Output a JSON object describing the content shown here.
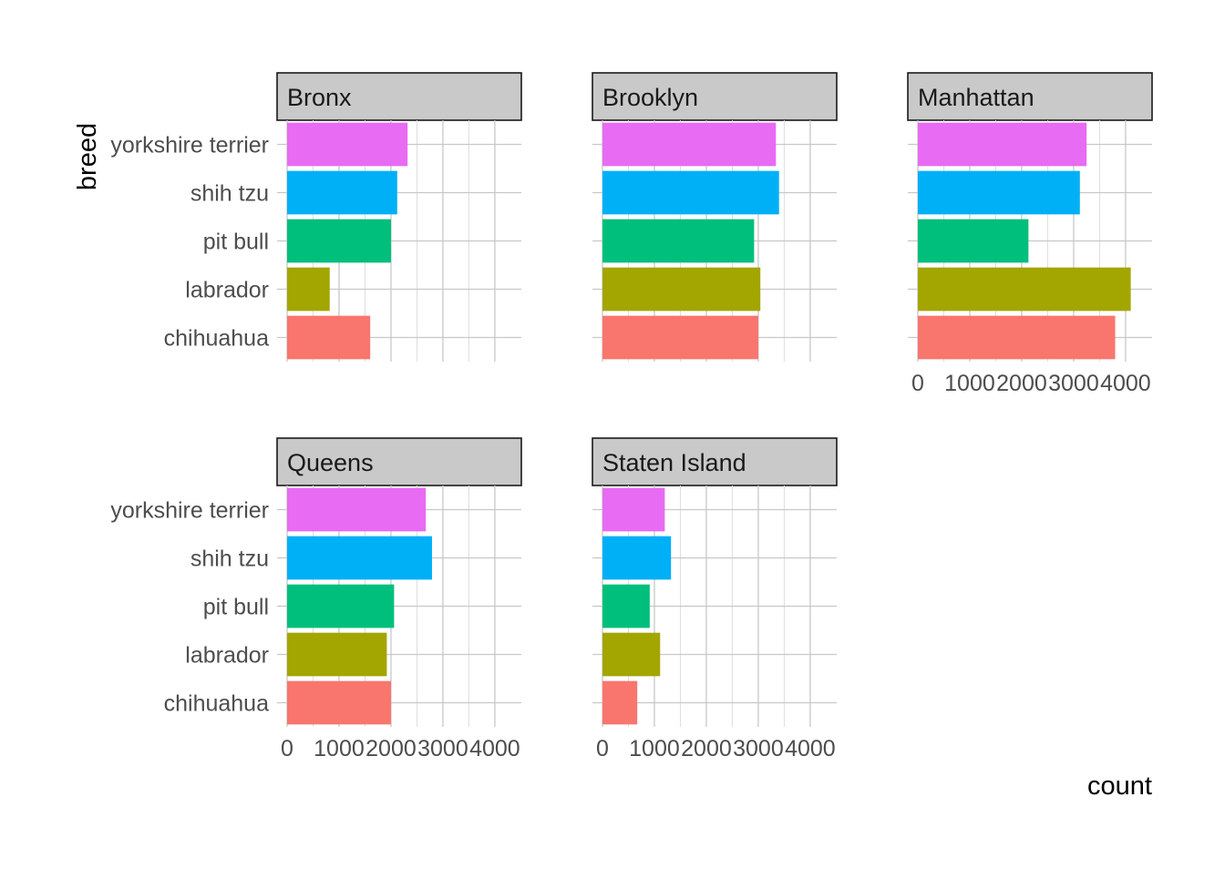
{
  "chart_data": {
    "type": "bar",
    "orientation": "horizontal",
    "facet_by": "borough",
    "categories": [
      "chihuahua",
      "labrador",
      "pit bull",
      "shih tzu",
      "yorkshire terrier"
    ],
    "colors": {
      "chihuahua": "#F8766D",
      "labrador": "#A3A500",
      "pit bull": "#00BF7D",
      "shih tzu": "#00B0F6",
      "yorkshire terrier": "#E76BF3"
    },
    "panels": [
      {
        "name": "Bronx",
        "values": [
          1600,
          820,
          2000,
          2120,
          2320
        ]
      },
      {
        "name": "Brooklyn",
        "values": [
          3000,
          3040,
          2920,
          3400,
          3340
        ]
      },
      {
        "name": "Manhattan",
        "values": [
          3800,
          4100,
          2130,
          3120,
          3250
        ]
      },
      {
        "name": "Queens",
        "values": [
          2000,
          1920,
          2060,
          2790,
          2670
        ]
      },
      {
        "name": "Staten Island",
        "values": [
          670,
          1110,
          910,
          1320,
          1200
        ]
      }
    ],
    "xlim": [
      0,
      4300
    ],
    "x_ticks": [
      0,
      1000,
      2000,
      3000,
      4000
    ],
    "xlabel": "count",
    "ylabel": "breed",
    "grid": true,
    "legend": "none"
  }
}
